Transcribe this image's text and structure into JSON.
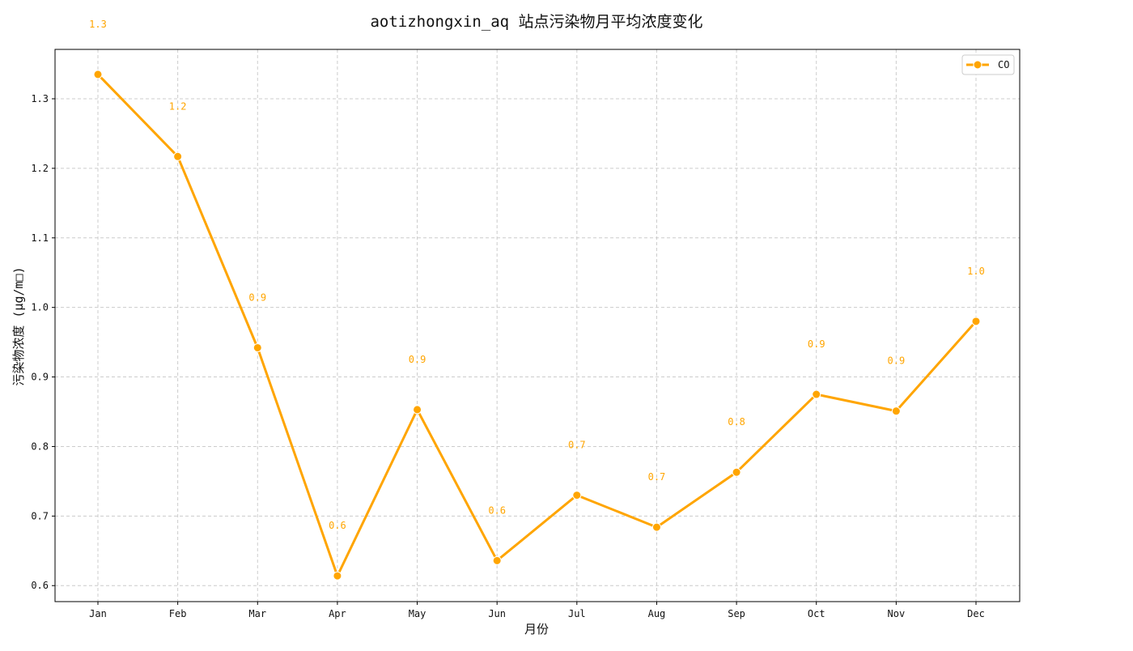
{
  "chart_data": {
    "type": "line",
    "title": "aotizhongxin_aq 站点污染物月平均浓度变化",
    "xlabel": "月份",
    "ylabel": "污染物浓度 (μg/m□)",
    "categories": [
      "Jan",
      "Feb",
      "Mar",
      "Apr",
      "May",
      "Jun",
      "Jul",
      "Aug",
      "Sep",
      "Oct",
      "Nov",
      "Dec"
    ],
    "series": [
      {
        "name": "CO",
        "color": "#FFA500",
        "values": [
          1.335,
          1.217,
          0.942,
          0.614,
          0.853,
          0.636,
          0.73,
          0.684,
          0.763,
          0.875,
          0.851,
          0.98
        ],
        "labels": [
          "1.3",
          "1.2",
          "0.9",
          "0.6",
          "0.9",
          "0.6",
          "0.7",
          "0.7",
          "0.8",
          "0.9",
          "0.9",
          "1.0"
        ]
      }
    ],
    "ylim": [
      0.577,
      1.371
    ],
    "yticks": [
      0.6,
      0.7,
      0.8,
      0.9,
      1.0,
      1.1,
      1.2,
      1.3
    ],
    "ytick_labels": [
      "0.6",
      "0.7",
      "0.8",
      "0.9",
      "1.0",
      "1.1",
      "1.2",
      "1.3"
    ],
    "grid": true,
    "legend_position": "top-right",
    "marker": "circle"
  }
}
